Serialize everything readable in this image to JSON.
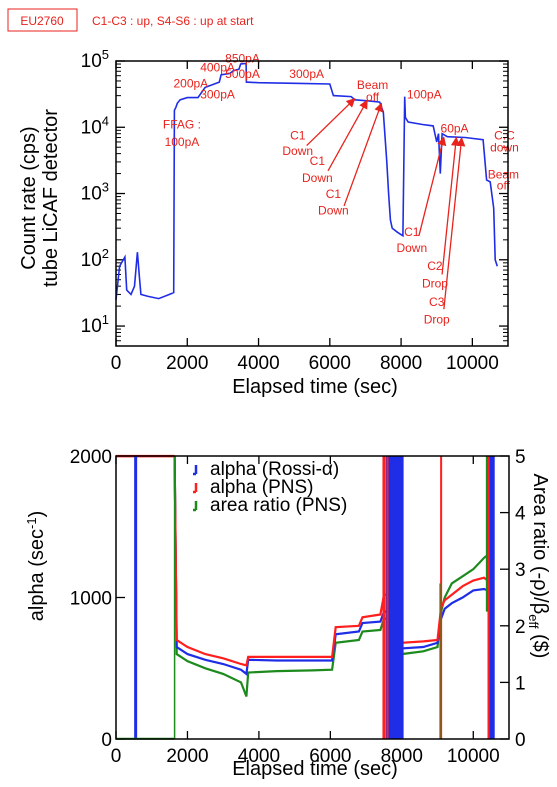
{
  "header": {
    "tag": "EU2760",
    "note": "C1-C3 : up, S4-S6 : up at start"
  },
  "colors": {
    "blue": "#1f2ee6",
    "red": "#ff1f1f",
    "green": "#1d8a1d",
    "annotation": "#e8231d"
  },
  "chart_data": [
    {
      "type": "line",
      "scale": "log",
      "xlabel": "Elapsed time (sec)",
      "ylabel_lines": [
        "Count rate (cps)",
        "tube LiCAF detector"
      ],
      "xlim": [
        0,
        11000
      ],
      "ylim": [
        5,
        100000
      ],
      "xticks": [
        0,
        2000,
        4000,
        6000,
        8000,
        10000
      ],
      "xtick_labels": [
        "0",
        "2000",
        "4000",
        "6000",
        "8000",
        "10000"
      ],
      "yticks": [
        10,
        100,
        1000,
        10000,
        100000
      ],
      "ytick_base": "10",
      "ytick_exps": [
        "1",
        "2",
        "3",
        "4",
        "5"
      ],
      "series": [
        {
          "color": "#1f2ee6",
          "points": [
            [
              0,
              25
            ],
            [
              100,
              80
            ],
            [
              250,
              110
            ],
            [
              300,
              35
            ],
            [
              420,
              30
            ],
            [
              520,
              40
            ],
            [
              600,
              130
            ],
            [
              650,
              60
            ],
            [
              700,
              30
            ],
            [
              900,
              28
            ],
            [
              1200,
              26
            ],
            [
              1500,
              30
            ],
            [
              1620,
              32
            ],
            [
              1640,
              18000
            ],
            [
              1680,
              20000
            ],
            [
              1720,
              23000
            ],
            [
              1800,
              26000
            ],
            [
              2000,
              28000
            ],
            [
              2300,
              28000
            ],
            [
              2500,
              40000
            ],
            [
              2900,
              48000
            ],
            [
              2950,
              62000
            ],
            [
              3200,
              65000
            ],
            [
              3300,
              72000
            ],
            [
              3450,
              75000
            ],
            [
              3500,
              90000
            ],
            [
              3650,
              92000
            ],
            [
              3660,
              48000
            ],
            [
              4000,
              47000
            ],
            [
              5000,
              46000
            ],
            [
              6000,
              45000
            ],
            [
              6100,
              30000
            ],
            [
              6600,
              29000
            ],
            [
              6700,
              26000
            ],
            [
              7100,
              25000
            ],
            [
              7400,
              24000
            ],
            [
              7500,
              17000
            ],
            [
              7600,
              3000
            ],
            [
              7650,
              1000
            ],
            [
              7700,
              400
            ],
            [
              7750,
              300
            ],
            [
              7900,
              260
            ],
            [
              8050,
              230
            ],
            [
              8100,
              29000
            ],
            [
              8120,
              14000
            ],
            [
              8200,
              12000
            ],
            [
              8600,
              11000
            ],
            [
              8900,
              10500
            ],
            [
              9000,
              6000
            ],
            [
              9050,
              8000
            ],
            [
              9100,
              2000
            ],
            [
              9150,
              8000
            ],
            [
              9300,
              7200
            ],
            [
              9800,
              7000
            ],
            [
              10300,
              6500
            ],
            [
              10400,
              1600
            ],
            [
              10500,
              1500
            ],
            [
              10600,
              600
            ],
            [
              10640,
              100
            ],
            [
              10700,
              80
            ]
          ]
        }
      ],
      "annotations": [
        {
          "text": "850pA",
          "x": 3550,
          "y": 95000
        },
        {
          "text": "400pA",
          "x": 2850,
          "y": 70000
        },
        {
          "text": "500pA",
          "x": 3550,
          "y": 55000
        },
        {
          "text": "300pA",
          "x": 5350,
          "y": 55000
        },
        {
          "text": "200pA",
          "x": 2100,
          "y": 40000
        },
        {
          "text": "300pA",
          "x": 2850,
          "y": 27000
        },
        {
          "text": "Beam",
          "x": 7200,
          "y": 38000
        },
        {
          "text": "off",
          "x": 7200,
          "y": 25000
        },
        {
          "text": "100pA",
          "x": 8650,
          "y": 27000
        },
        {
          "text": "FFAG :",
          "x": 1850,
          "y": 9600
        },
        {
          "text": "100pA",
          "x": 1850,
          "y": 5200
        },
        {
          "text": "60pA",
          "x": 9500,
          "y": 8300
        },
        {
          "text": "C.C",
          "x": 10900,
          "y": 6500
        },
        {
          "text": "down",
          "x": 10900,
          "y": 4300
        },
        {
          "text": "C1",
          "x": 5100,
          "y": 6500
        },
        {
          "text": "Down",
          "x": 5100,
          "y": 3800
        },
        {
          "text": "C1",
          "x": 5650,
          "y": 2700
        },
        {
          "text": "Down",
          "x": 5650,
          "y": 1500
        },
        {
          "text": "C1",
          "x": 6100,
          "y": 850
        },
        {
          "text": "Down",
          "x": 6100,
          "y": 480
        },
        {
          "text": "Beam",
          "x": 10870,
          "y": 1700
        },
        {
          "text": "off",
          "x": 10870,
          "y": 1150
        },
        {
          "text": "C1",
          "x": 8300,
          "y": 230
        },
        {
          "text": "Down",
          "x": 8300,
          "y": 130
        },
        {
          "text": "C2",
          "x": 8950,
          "y": 70
        },
        {
          "text": "Drop",
          "x": 8950,
          "y": 38
        },
        {
          "text": "C3",
          "x": 9000,
          "y": 20
        },
        {
          "text": "Drop",
          "x": 9000,
          "y": 11
        }
      ],
      "arrows": [
        {
          "from": [
            5350,
            5300
          ],
          "to": [
            6700,
            27000
          ]
        },
        {
          "from": [
            5950,
            2200
          ],
          "to": [
            7050,
            25500
          ]
        },
        {
          "from": [
            6400,
            650
          ],
          "to": [
            7450,
            23000
          ]
        },
        {
          "from": [
            8500,
            230
          ],
          "to": [
            9200,
            7100
          ]
        },
        {
          "from": [
            9150,
            60
          ],
          "to": [
            9550,
            7000
          ]
        },
        {
          "from": [
            9200,
            18
          ],
          "to": [
            9700,
            6900
          ]
        }
      ]
    },
    {
      "type": "line",
      "xlabel": "Elapsed time (sec)",
      "ylabel": "alpha (sec",
      "ylabel_sup": "-1",
      "ylabel_close": ")",
      "y2label": "Area ratio (-ρ)/β",
      "y2label_sub": "eff",
      "y2label_tail": " ($)",
      "xlim": [
        0,
        11000
      ],
      "ylim": [
        0,
        2000
      ],
      "y2lim": [
        0,
        5
      ],
      "xticks": [
        0,
        2000,
        4000,
        6000,
        8000,
        10000
      ],
      "xtick_labels": [
        "0",
        "2000",
        "4000",
        "6000",
        "8000",
        "10000"
      ],
      "yticks": [
        0,
        1000,
        2000
      ],
      "ytick_labels": [
        "0",
        "1000",
        "2000"
      ],
      "y2ticks": [
        0,
        1,
        2,
        3,
        4,
        5
      ],
      "y2tick_labels": [
        "0",
        "1",
        "2",
        "3",
        "4",
        "5"
      ],
      "legend_position": "top-center",
      "series": [
        {
          "name": "alpha (Rossi-α)",
          "color": "#1f2ee6",
          "points": [
            [
              1640,
              2000
            ],
            [
              1700,
              650
            ],
            [
              2000,
              600
            ],
            [
              2500,
              560
            ],
            [
              3000,
              530
            ],
            [
              3500,
              490
            ],
            [
              3650,
              460
            ],
            [
              3700,
              560
            ],
            [
              4500,
              555
            ],
            [
              5500,
              555
            ],
            [
              6050,
              555
            ],
            [
              6150,
              740
            ],
            [
              6800,
              760
            ],
            [
              6900,
              820
            ],
            [
              7400,
              830
            ],
            [
              7500,
              900
            ],
            [
              7650,
              900
            ],
            [
              7700,
              560
            ],
            [
              8000,
              640
            ],
            [
              8600,
              650
            ],
            [
              9000,
              680
            ],
            [
              9100,
              850
            ],
            [
              9200,
              920
            ],
            [
              9400,
              960
            ],
            [
              9700,
              1000
            ],
            [
              10000,
              1050
            ],
            [
              10300,
              1060
            ],
            [
              10400,
              1050
            ]
          ]
        },
        {
          "name": "alpha (PNS)",
          "color": "#ff1f1f",
          "points": [
            [
              1640,
              2000
            ],
            [
              1700,
              700
            ],
            [
              2000,
              650
            ],
            [
              2500,
              600
            ],
            [
              3000,
              570
            ],
            [
              3500,
              530
            ],
            [
              3650,
              520
            ],
            [
              3700,
              580
            ],
            [
              4500,
              580
            ],
            [
              5500,
              580
            ],
            [
              6050,
              580
            ],
            [
              6150,
              790
            ],
            [
              6800,
              800
            ],
            [
              6900,
              860
            ],
            [
              7400,
              880
            ],
            [
              7500,
              1020
            ],
            [
              7650,
              1020
            ],
            [
              7700,
              580
            ],
            [
              8000,
              680
            ],
            [
              8600,
              690
            ],
            [
              9000,
              700
            ],
            [
              9100,
              930
            ],
            [
              9200,
              980
            ],
            [
              9400,
              1020
            ],
            [
              9700,
              1080
            ],
            [
              10000,
              1120
            ],
            [
              10300,
              1140
            ],
            [
              10400,
              1120
            ]
          ]
        },
        {
          "name": "area ratio (PNS)",
          "color": "#1d8a1d",
          "points": [
            [
              1640,
              2000
            ],
            [
              1700,
              600
            ],
            [
              2000,
              550
            ],
            [
              2500,
              500
            ],
            [
              3000,
              460
            ],
            [
              3500,
              400
            ],
            [
              3650,
              300
            ],
            [
              3700,
              470
            ],
            [
              4500,
              480
            ],
            [
              5500,
              485
            ],
            [
              6050,
              490
            ],
            [
              6150,
              680
            ],
            [
              6800,
              700
            ],
            [
              6900,
              760
            ],
            [
              7400,
              770
            ],
            [
              7500,
              850
            ],
            [
              7650,
              850
            ],
            [
              7700,
              520
            ],
            [
              8000,
              600
            ],
            [
              8600,
              620
            ],
            [
              9000,
              650
            ],
            [
              9100,
              900
            ],
            [
              9200,
              1000
            ],
            [
              9400,
              1100
            ],
            [
              9700,
              1150
            ],
            [
              10000,
              1200
            ],
            [
              10300,
              1280
            ],
            [
              10400,
              1300
            ]
          ]
        }
      ]
    }
  ]
}
